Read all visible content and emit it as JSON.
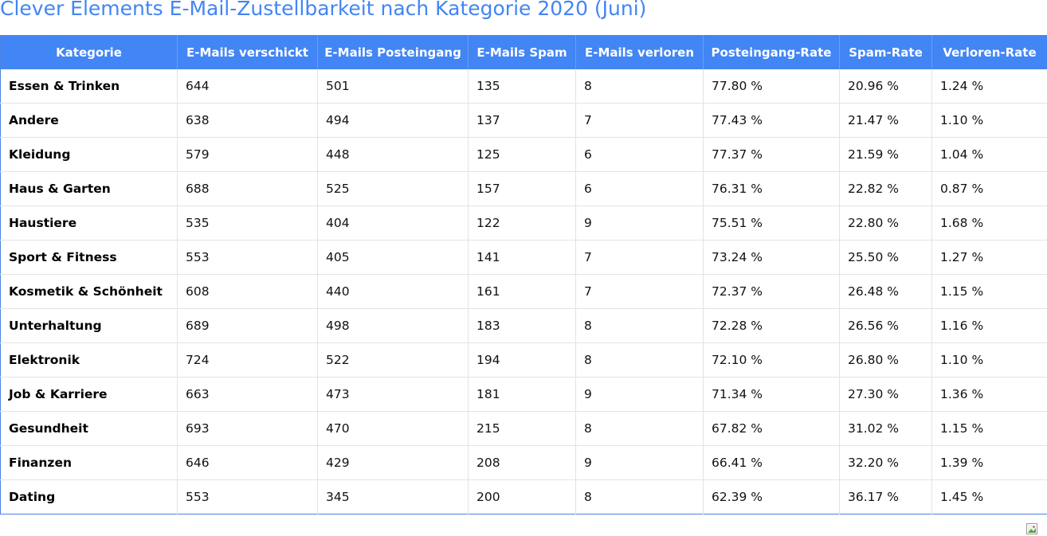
{
  "title": "Clever Elements E-Mail-Zustellbarkeit nach Kategorie 2020 (Juni)",
  "colors": {
    "title": "#4285f4",
    "header_bg": "#4285f4",
    "header_text": "#ffffff",
    "border": "#4a82e4"
  },
  "table": {
    "headers": [
      "Kategorie",
      "E-Mails verschickt",
      "E-Mails Posteingang",
      "E-Mails Spam",
      "E-Mails verloren",
      "Posteingang-Rate",
      "Spam-Rate",
      "Verloren-Rate"
    ],
    "rows": [
      [
        "Essen & Trinken",
        "644",
        "501",
        "135",
        "8",
        "77.80 %",
        "20.96 %",
        "1.24 %"
      ],
      [
        "Andere",
        "638",
        "494",
        "137",
        "7",
        "77.43 %",
        "21.47 %",
        "1.10 %"
      ],
      [
        "Kleidung",
        "579",
        "448",
        "125",
        "6",
        "77.37 %",
        "21.59 %",
        "1.04 %"
      ],
      [
        "Haus & Garten",
        "688",
        "525",
        "157",
        "6",
        "76.31 %",
        "22.82 %",
        "0.87 %"
      ],
      [
        "Haustiere",
        "535",
        "404",
        "122",
        "9",
        "75.51 %",
        "22.80 %",
        "1.68 %"
      ],
      [
        "Sport & Fitness",
        "553",
        "405",
        "141",
        "7",
        "73.24 %",
        "25.50 %",
        "1.27 %"
      ],
      [
        "Kosmetik & Schönheit",
        "608",
        "440",
        "161",
        "7",
        "72.37 %",
        "26.48 %",
        "1.15 %"
      ],
      [
        "Unterhaltung",
        "689",
        "498",
        "183",
        "8",
        "72.28 %",
        "26.56 %",
        "1.16 %"
      ],
      [
        "Elektronik",
        "724",
        "522",
        "194",
        "8",
        "72.10 %",
        "26.80 %",
        "1.10 %"
      ],
      [
        "Job & Karriere",
        "663",
        "473",
        "181",
        "9",
        "71.34 %",
        "27.30 %",
        "1.36 %"
      ],
      [
        "Gesundheit",
        "693",
        "470",
        "215",
        "8",
        "67.82 %",
        "31.02 %",
        "1.15 %"
      ],
      [
        "Finanzen",
        "646",
        "429",
        "208",
        "9",
        "66.41 %",
        "32.20 %",
        "1.39 %"
      ],
      [
        "Dating",
        "553",
        "345",
        "200",
        "8",
        "62.39 %",
        "36.17 %",
        "1.45 %"
      ]
    ]
  },
  "footer": {
    "image_icon": "broken-image-icon"
  }
}
